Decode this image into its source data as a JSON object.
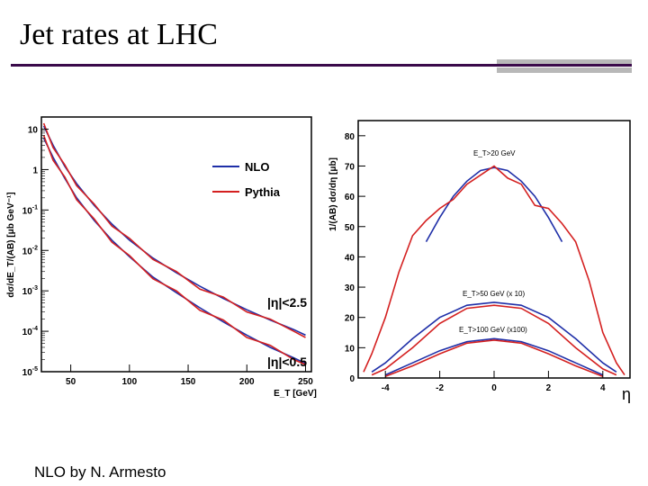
{
  "slide": {
    "title": "Jet rates at LHC",
    "credit": "NLO by N. Armesto"
  },
  "colors": {
    "nlo": "#1f2fa8",
    "pythia": "#d42020",
    "rule": "#3a0a4a",
    "accent_grey": "#b8b8b8"
  },
  "chart_data": [
    {
      "type": "line",
      "yscale": "log",
      "xlabel": "E_T  [GeV]",
      "ylabel": "dσ/dE_T/(AB) [μb GeV⁻¹]",
      "xlim": [
        25,
        255
      ],
      "ylim": [
        1e-05,
        20
      ],
      "xticks": [
        50,
        100,
        150,
        200,
        250
      ],
      "yticks": [
        {
          "value": 10,
          "base": "10",
          "exp": ""
        },
        {
          "value": 1,
          "base": "1",
          "exp": ""
        },
        {
          "value": 0.1,
          "base": "10",
          "exp": "-1"
        },
        {
          "value": 0.01,
          "base": "10",
          "exp": "-2"
        },
        {
          "value": 0.001,
          "base": "10",
          "exp": "-3"
        },
        {
          "value": 0.0001,
          "base": "10",
          "exp": "-4"
        },
        {
          "value": 1e-05,
          "base": "10",
          "exp": "-5"
        }
      ],
      "legend": [
        {
          "name": "NLO",
          "color": "#1f2fa8"
        },
        {
          "name": "Pythia",
          "color": "#d42020"
        }
      ],
      "annotations": [
        "|η|<2.5",
        "|η|<0.5"
      ],
      "series": [
        {
          "name": "NLO",
          "label": "|η|<2.5",
          "x": [
            27,
            35,
            45,
            55,
            70,
            85,
            100,
            120,
            140,
            160,
            180,
            200,
            220,
            240,
            250
          ],
          "y": [
            12,
            4,
            1.2,
            0.45,
            0.13,
            0.045,
            0.018,
            0.0065,
            0.0028,
            0.0013,
            0.00065,
            0.00034,
            0.00019,
            0.00011,
            8e-05
          ]
        },
        {
          "name": "Pythia",
          "label": "|η|<2.5",
          "x": [
            27,
            35,
            45,
            55,
            70,
            85,
            100,
            120,
            140,
            160,
            180,
            200,
            220,
            240,
            250
          ],
          "y": [
            14,
            3.5,
            1.3,
            0.4,
            0.14,
            0.04,
            0.02,
            0.006,
            0.003,
            0.0011,
            0.0007,
            0.0003,
            0.0002,
            0.0001,
            7e-05
          ]
        },
        {
          "name": "NLO",
          "label": "|η|<0.5",
          "x": [
            27,
            35,
            45,
            55,
            70,
            85,
            100,
            120,
            140,
            160,
            180,
            200,
            220,
            240,
            250
          ],
          "y": [
            6,
            2,
            0.6,
            0.2,
            0.055,
            0.018,
            0.007,
            0.0022,
            0.0009,
            0.00038,
            0.00017,
            8e-05,
            4e-05,
            2.2e-05,
            1.6e-05
          ]
        },
        {
          "name": "Pythia",
          "label": "|η|<0.5",
          "x": [
            27,
            35,
            45,
            55,
            70,
            85,
            100,
            120,
            140,
            160,
            180,
            200,
            220,
            240,
            250
          ],
          "y": [
            7,
            1.7,
            0.65,
            0.18,
            0.06,
            0.016,
            0.0075,
            0.002,
            0.001,
            0.00033,
            0.00019,
            7e-05,
            4.5e-05,
            2e-05,
            1.5e-05
          ]
        }
      ]
    },
    {
      "type": "line",
      "yscale": "linear",
      "xlabel": "η",
      "ylabel": "1/(AB) dσ/dη [μb]",
      "xlim": [
        -5,
        5
      ],
      "ylim": [
        0,
        85
      ],
      "xticks": [
        -4,
        -2,
        0,
        2,
        4
      ],
      "yticks": [
        0,
        10,
        20,
        30,
        40,
        50,
        60,
        70,
        80
      ],
      "annotations": [
        "E_T>20 GeV",
        "E_T>50 GeV (x 10)",
        "E_T>100 GeV (x100)"
      ],
      "series": [
        {
          "name": "NLO",
          "label": "E_T>20 GeV",
          "x": [
            -2.5,
            -2,
            -1.5,
            -1,
            -0.5,
            0,
            0.5,
            1,
            1.5,
            2,
            2.5
          ],
          "y": [
            45,
            53,
            60,
            65,
            68.5,
            69.5,
            68.5,
            65,
            60,
            53,
            45
          ]
        },
        {
          "name": "Pythia",
          "label": "E_T>20 GeV",
          "x": [
            -4.8,
            -4.5,
            -4,
            -3.5,
            -3,
            -2.5,
            -2,
            -1.5,
            -1,
            -0.5,
            0,
            0.5,
            1,
            1.5,
            2,
            2.5,
            3,
            3.5,
            4,
            4.5,
            4.8
          ],
          "y": [
            2,
            8,
            20,
            35,
            47,
            52,
            56,
            59,
            64,
            67,
            70,
            66,
            64,
            57,
            56,
            51,
            45,
            32,
            15,
            5,
            1
          ]
        },
        {
          "name": "NLO",
          "label": "E_T>50 GeV (x 10)",
          "x": [
            -4.5,
            -4,
            -3,
            -2,
            -1,
            0,
            1,
            2,
            3,
            4,
            4.5
          ],
          "y": [
            2,
            5,
            13,
            20,
            24,
            25,
            24,
            20,
            13,
            5,
            2
          ]
        },
        {
          "name": "Pythia",
          "label": "E_T>50 GeV (x 10)",
          "x": [
            -4.5,
            -4,
            -3,
            -2,
            -1,
            0,
            1,
            2,
            3,
            4,
            4.5
          ],
          "y": [
            1,
            3,
            10,
            18,
            23,
            24,
            23,
            18,
            10,
            3,
            1
          ]
        },
        {
          "name": "NLO",
          "label": "E_T>100 GeV (x100)",
          "x": [
            -4,
            -3,
            -2,
            -1,
            0,
            1,
            2,
            3,
            4
          ],
          "y": [
            1,
            5,
            9,
            12,
            13,
            12,
            9,
            5,
            1
          ]
        },
        {
          "name": "Pythia",
          "label": "E_T>100 GeV (x100)",
          "x": [
            -4,
            -3,
            -2,
            -1,
            0,
            1,
            2,
            3,
            4
          ],
          "y": [
            0.5,
            4,
            8,
            11.5,
            12.5,
            11.5,
            8,
            4,
            0.5
          ]
        }
      ]
    }
  ]
}
